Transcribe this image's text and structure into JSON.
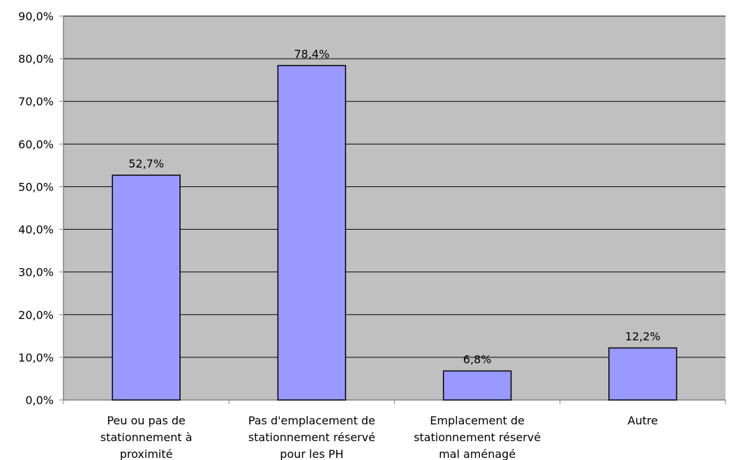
{
  "chart_data": {
    "type": "bar",
    "categories": [
      [
        "Peu ou pas de",
        "stationnement à",
        "proximité"
      ],
      [
        "Pas d'emplacement de",
        "stationnement réservé",
        "pour les PH"
      ],
      [
        "Emplacement de",
        "stationnement réservé",
        "mal aménagé"
      ],
      [
        "Autre"
      ]
    ],
    "values": [
      52.7,
      78.4,
      6.8,
      12.2
    ],
    "data_labels": [
      "52,7%",
      "78,4%",
      "6,8%",
      "12,2%"
    ],
    "yticks": [
      0,
      10,
      20,
      30,
      40,
      50,
      60,
      70,
      80,
      90
    ],
    "ytick_labels": [
      "0,0%",
      "10,0%",
      "20,0%",
      "30,0%",
      "40,0%",
      "50,0%",
      "60,0%",
      "70,0%",
      "80,0%",
      "90,0%"
    ],
    "ylim": [
      0,
      90
    ],
    "grid": true,
    "title": "",
    "xlabel": "",
    "ylabel": "",
    "colors": {
      "bar_fill": "#9999FF",
      "bar_stroke": "#000000",
      "plot_background": "#C0C0C0",
      "gridline": "#000000",
      "axis": "#808080"
    }
  }
}
